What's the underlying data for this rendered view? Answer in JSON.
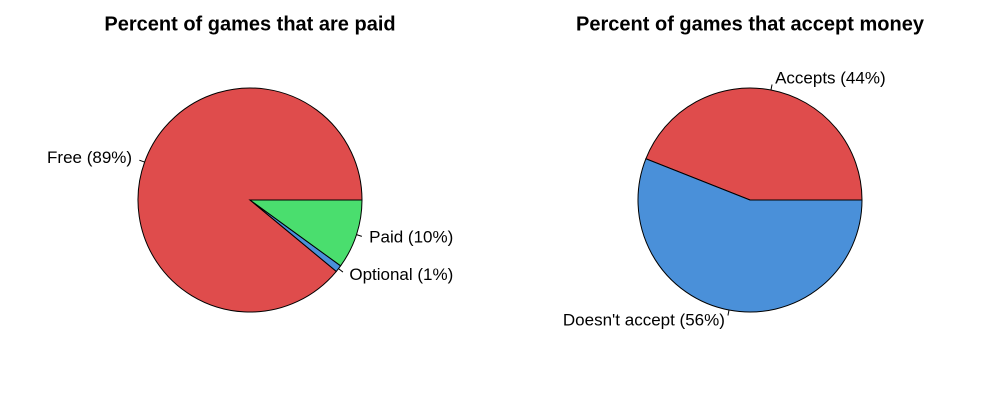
{
  "chart_data": [
    {
      "type": "pie",
      "title": "Percent of games that are paid",
      "categories": [
        "Free (89%)",
        "Optional (1%)",
        "Paid (10%)"
      ],
      "values": [
        89,
        1,
        10
      ],
      "colors": [
        "#df4c4c",
        "#4a90d9",
        "#4ade6e"
      ]
    },
    {
      "type": "pie",
      "title": "Percent of games that accept money",
      "categories": [
        "Accepts (44%)",
        "Doesn't accept (56%)"
      ],
      "values": [
        44,
        56
      ],
      "colors": [
        "#df4c4c",
        "#4a90d9"
      ]
    }
  ]
}
